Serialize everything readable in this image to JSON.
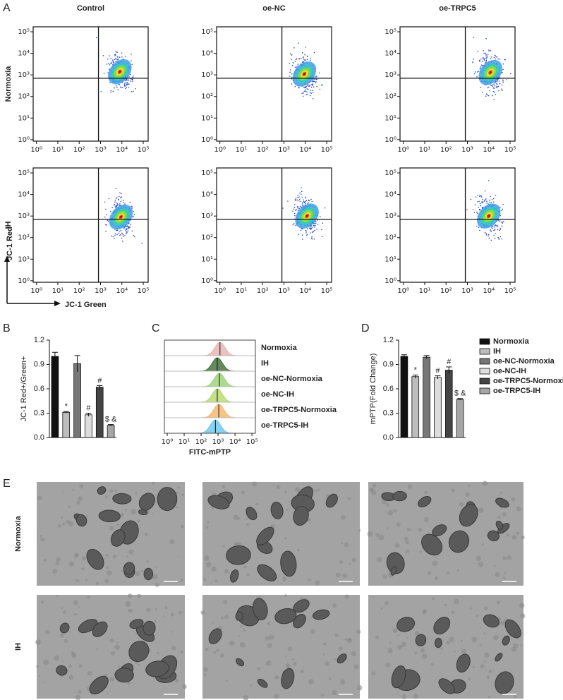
{
  "panel_labels": [
    "A",
    "B",
    "C",
    "D",
    "E"
  ],
  "chart_data": [
    {
      "type": "flow_grid",
      "columns": [
        "Control",
        "oe-NC",
        "oe-TRPC5"
      ],
      "rows": [
        "Normoxia",
        "IH"
      ],
      "xlabel": "JC-1 Green",
      "ylabel": "JC-1 Red",
      "log": true,
      "xlim": [
        0.7,
        170000
      ],
      "ylim": [
        0.85,
        170000
      ],
      "xticks": [
        {
          "value": 1,
          "label": "10⁰"
        },
        {
          "value": 10,
          "label": "10¹"
        },
        {
          "value": 100,
          "label": "10²"
        },
        {
          "value": 1000,
          "label": "10³"
        },
        {
          "value": 10000,
          "label": "10⁴"
        },
        {
          "value": 100000,
          "label": "10⁵"
        }
      ],
      "yticks": [
        {
          "value": 1,
          "label": "10⁰"
        },
        {
          "value": 10,
          "label": "10¹"
        },
        {
          "value": 100,
          "label": "10²"
        },
        {
          "value": 1000,
          "label": "10³"
        },
        {
          "value": 10000,
          "label": "10⁴"
        },
        {
          "value": 100000,
          "label": "10⁵"
        }
      ],
      "gate": {
        "x": 800,
        "y": 700
      },
      "plots": [
        {
          "center": [
            8000,
            1400
          ]
        },
        {
          "center": [
            9000,
            1100
          ]
        },
        {
          "center": [
            12000,
            1300
          ]
        },
        {
          "center": [
            9000,
            900
          ]
        },
        {
          "center": [
            12000,
            1000
          ]
        },
        {
          "center": [
            10000,
            1000
          ]
        }
      ]
    },
    {
      "type": "bar",
      "ylabel": "JC-1 Red+/Green+",
      "categories": [
        null,
        null,
        null,
        null,
        null,
        null
      ],
      "values": [
        1.0,
        0.31,
        0.91,
        0.28,
        0.62,
        0.15
      ],
      "errors": [
        0.05,
        0.01,
        0.1,
        0.02,
        0.02,
        0.01
      ],
      "colors": [
        "#111111",
        "#bdbdbd",
        "#777777",
        "#dddddd",
        "#444444",
        "#a6a6a6"
      ],
      "annotations": [
        null,
        "*",
        null,
        "#",
        "#",
        "$ &"
      ],
      "ylim": [
        0,
        1.2
      ],
      "yticks": [
        {
          "value": 0,
          "label": "0.0"
        },
        0.3,
        0.6,
        0.9,
        1.2
      ]
    },
    {
      "type": "density",
      "xlabel": "FITC-mPTP",
      "log": true,
      "xlim": [
        0.68,
        160000
      ],
      "xticks": [
        {
          "value": 1,
          "label": "10⁰"
        },
        {
          "value": 10,
          "label": "10¹"
        },
        {
          "value": 100,
          "label": "10²"
        },
        {
          "value": 1000,
          "label": "10³"
        },
        {
          "value": 10000,
          "label": "10⁴"
        },
        {
          "value": 100000,
          "label": "10⁵"
        }
      ],
      "series": [
        {
          "name": "Normoxia",
          "color": "#e6b3b3",
          "peak": 1300
        },
        {
          "name": "IH",
          "color": "#3f6b35",
          "peak": 900
        },
        {
          "name": "oe-NC-Normoxia",
          "color": "#98cf74",
          "peak": 1200
        },
        {
          "name": "oe-NC-IH",
          "color": "#b5d86b",
          "peak": 900
        },
        {
          "name": "oe-TRPC5-Normoxia",
          "color": "#f4b56c",
          "peak": 1100
        },
        {
          "name": "oe-TRPC5-IH",
          "color": "#6cc6ea",
          "peak": 700
        }
      ]
    },
    {
      "type": "bar",
      "ylabel": "mPTP(Fold Change)",
      "categories": [
        null,
        null,
        null,
        null,
        null,
        null
      ],
      "values": [
        1.0,
        0.75,
        0.99,
        0.74,
        0.83,
        0.47
      ],
      "errors": [
        0.02,
        0.02,
        0.02,
        0.02,
        0.04,
        0.01
      ],
      "colors": [
        "#111111",
        "#bdbdbd",
        "#777777",
        "#dddddd",
        "#444444",
        "#a6a6a6"
      ],
      "annotations": [
        null,
        "*",
        null,
        "#",
        "#",
        "$ &"
      ],
      "legend": [
        "Normoxia",
        "IH",
        "oe-NC-Normoxia",
        "oe-NC-IH",
        "oe-TRPC5-Normoxia",
        "oe-TRPC5-IH"
      ],
      "ylim": [
        0,
        1.2
      ],
      "yticks": [
        {
          "value": 0,
          "label": "0.0"
        },
        0.3,
        0.6,
        0.9,
        1.2
      ]
    }
  ],
  "figure_e": {
    "rows": [
      "Normoxia",
      "IH"
    ]
  }
}
